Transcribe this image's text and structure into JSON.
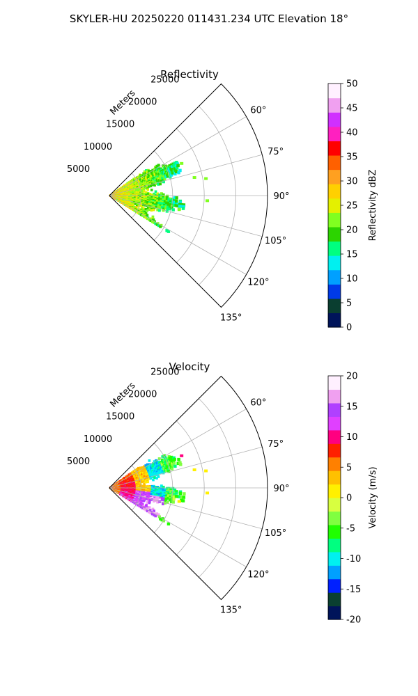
{
  "figure": {
    "title": "SKYLER-HU  20250220  011431.234 UTC Elevation 18°"
  },
  "chart_data": [
    {
      "type": "heatmap",
      "title": "Reflectivity",
      "projection": "polar-sector",
      "radial_label": "Meters",
      "radial_ticks": [
        "5000",
        "10000",
        "15000",
        "20000",
        "25000"
      ],
      "r_max": 25000,
      "theta_min_deg": 45,
      "theta_max_deg": 135,
      "theta_ticks": [
        "60°",
        "75°",
        "90°",
        "105°",
        "120°",
        "135°"
      ],
      "grid": true,
      "echo_extent_m": [
        0,
        12000
      ],
      "echo_theta_range_deg": [
        55,
        122
      ],
      "echo_peak_values": [
        20,
        30
      ],
      "colorbar": {
        "label": "Reflectivity dBZ",
        "min": 0,
        "max": 50,
        "ticks": [
          "0",
          "5",
          "10",
          "15",
          "20",
          "25",
          "30",
          "35",
          "40",
          "45",
          "50"
        ],
        "colors": [
          "#00145a",
          "#0a3e30",
          "#003ae8",
          "#00a0ff",
          "#00f0f0",
          "#00ff80",
          "#2cd400",
          "#80ff20",
          "#e4f000",
          "#ffd000",
          "#ffa020",
          "#ff6000",
          "#ff0000",
          "#ff20c0",
          "#d030ff",
          "#f0a0f0",
          "#fff0ff"
        ]
      }
    },
    {
      "type": "heatmap",
      "title": "Velocity",
      "projection": "polar-sector",
      "radial_label": "Meters",
      "radial_ticks": [
        "5000",
        "10000",
        "15000",
        "20000",
        "25000"
      ],
      "r_max": 25000,
      "theta_min_deg": 45,
      "theta_max_deg": 135,
      "theta_ticks": [
        "60°",
        "75°",
        "90°",
        "105°",
        "120°",
        "135°"
      ],
      "grid": true,
      "echo_extent_m": [
        0,
        12000
      ],
      "echo_theta_range_deg": [
        55,
        122
      ],
      "colorbar": {
        "label": "Velocity (m/s)",
        "min": -20,
        "max": 20,
        "ticks": [
          "-20",
          "-15",
          "-10",
          "-5",
          "0",
          "5",
          "10",
          "15",
          "20"
        ],
        "colors": [
          "#00145a",
          "#0a4030",
          "#0020ff",
          "#00a0ff",
          "#00f0f0",
          "#00ff80",
          "#20ff00",
          "#80ff40",
          "#d8ff40",
          "#fff000",
          "#ffc000",
          "#ff8000",
          "#ff2000",
          "#ff0080",
          "#e040ff",
          "#b040ff",
          "#f0a0f0",
          "#fff0ff"
        ]
      }
    }
  ]
}
